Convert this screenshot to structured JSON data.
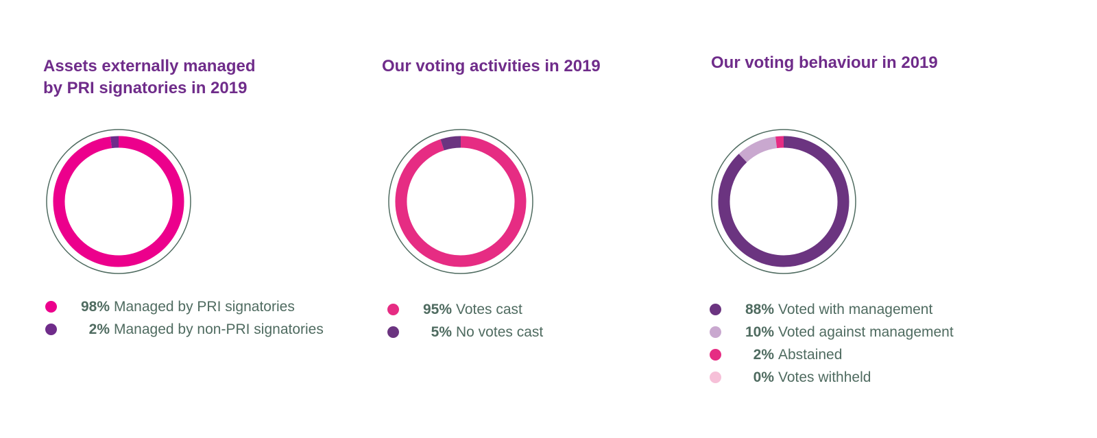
{
  "colors": {
    "magenta": "#ec008c",
    "pink": "#e62c83",
    "purple": "#6f2c8a",
    "darkpurple": "#6b3480",
    "lilac": "#c9a8cf",
    "lightpink": "#f6c0d8",
    "ring": "#4f6b60",
    "title": "#6f2c8a",
    "text": "#4f6b60"
  },
  "chart_data": [
    {
      "type": "pie",
      "style": "donut",
      "title": "Assets externally managed by PRI signatories in 2019",
      "title_lines": [
        "Assets externally managed",
        "by PRI signatories in 2019"
      ],
      "slices": [
        {
          "label": "Managed by PRI signatories",
          "value": 98,
          "display": "98%",
          "color": "#ec008c"
        },
        {
          "label": "Managed by non-PRI signatories",
          "value": 2,
          "display": "2%",
          "color": "#6f2c8a"
        }
      ]
    },
    {
      "type": "pie",
      "style": "donut",
      "title": "Our voting activities in 2019",
      "title_lines": [
        "Our voting activities in 2019"
      ],
      "slices": [
        {
          "label": "Votes cast",
          "value": 95,
          "display": "95%",
          "color": "#e62c83"
        },
        {
          "label": "No votes cast",
          "value": 5,
          "display": "5%",
          "color": "#6b3480"
        }
      ]
    },
    {
      "type": "pie",
      "style": "donut",
      "title": "Our voting behaviour in 2019",
      "title_lines": [
        "Our voting behaviour in 2019"
      ],
      "slices": [
        {
          "label": "Voted with management",
          "value": 88,
          "display": "88%",
          "color": "#6b3480"
        },
        {
          "label": "Voted against management",
          "value": 10,
          "display": "10%",
          "color": "#c9a8cf"
        },
        {
          "label": "Abstained",
          "value": 2,
          "display": "2%",
          "color": "#e62c83"
        },
        {
          "label": "Votes withheld",
          "value": 0,
          "display": "0%",
          "color": "#f6c0d8"
        }
      ]
    }
  ]
}
